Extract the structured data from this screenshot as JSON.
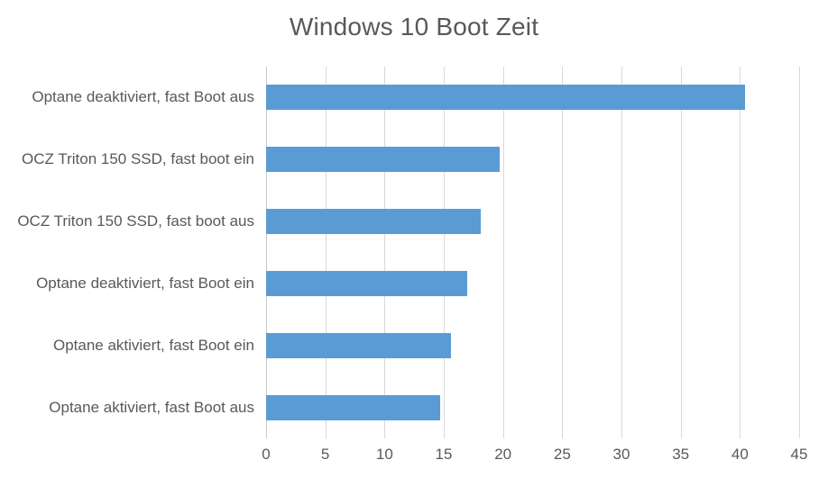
{
  "colors": {
    "background": "#ffffff",
    "bar": "#5b9bd5",
    "title_text": "#595959",
    "axis_text": "#595959",
    "gridline": "#d9d9d9",
    "axis_line": "#c9c9c9"
  },
  "chart_data": {
    "type": "bar",
    "orientation": "horizontal",
    "title": "Windows 10 Boot Zeit",
    "categories": [
      "Optane deaktiviert, fast Boot aus",
      "OCZ Triton 150 SSD, fast boot ein",
      "OCZ Triton 150 SSD, fast boot aus",
      "Optane deaktiviert, fast Boot ein",
      "Optane aktiviert, fast Boot ein",
      "Optane aktiviert, fast Boot aus"
    ],
    "values": [
      40.4,
      19.7,
      18.1,
      17.0,
      15.6,
      14.7
    ],
    "xlabel": "",
    "ylabel": "",
    "xlim": [
      0,
      45
    ],
    "xticks": [
      0,
      5,
      10,
      15,
      20,
      25,
      30,
      35,
      40,
      45
    ],
    "grid": true,
    "legend": false,
    "data_labels": false
  }
}
